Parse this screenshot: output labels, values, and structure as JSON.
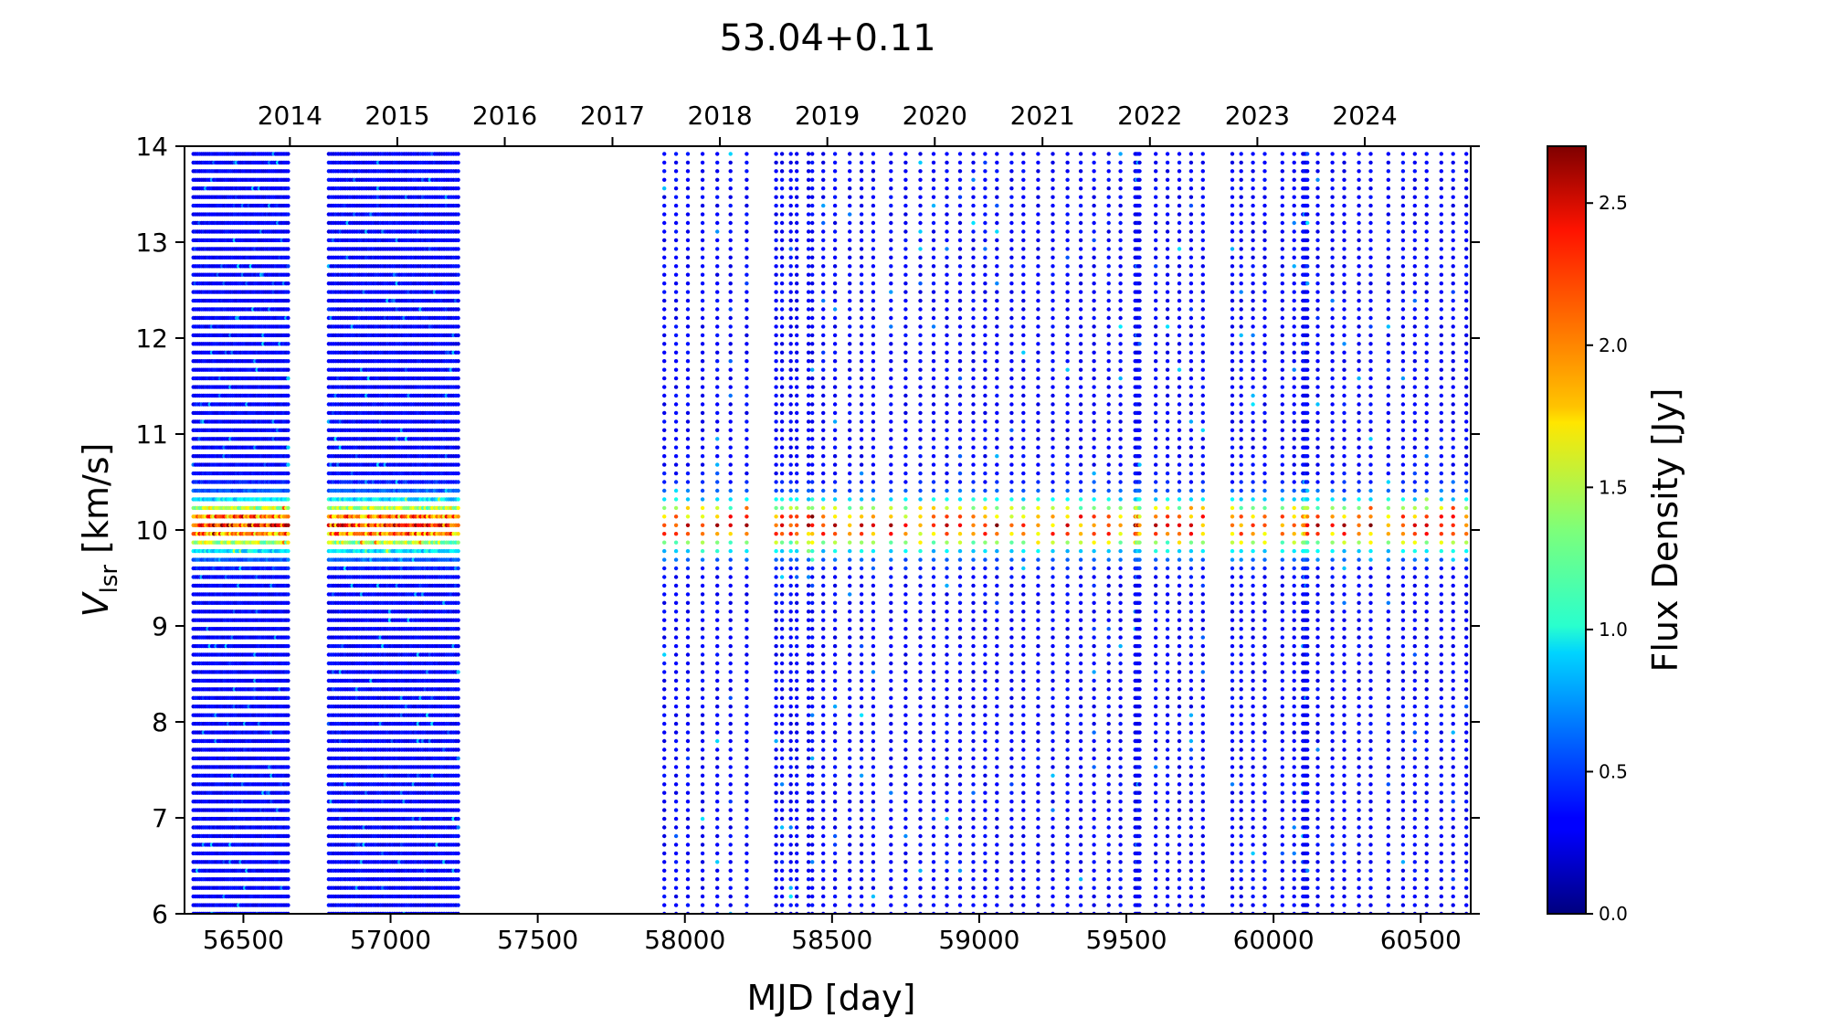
{
  "chart_data": {
    "type": "heatmap",
    "title": "53.04+0.11",
    "xlabel": "MJD [day]",
    "ylabel": "V",
    "ylabel_sub": "lsr",
    "ylabel_unit": " [km/s]",
    "xlim": [
      56300,
      60670
    ],
    "ylim": [
      6,
      14
    ],
    "x_ticks": [
      56500,
      57000,
      57500,
      58000,
      58500,
      59000,
      59500,
      60000,
      60500
    ],
    "y_ticks": [
      6,
      7,
      8,
      9,
      10,
      11,
      12,
      13,
      14
    ],
    "top_axis": {
      "labels": [
        "2014",
        "2015",
        "2016",
        "2017",
        "2018",
        "2019",
        "2020",
        "2021",
        "2022",
        "2023",
        "2024"
      ],
      "mjd_positions": [
        56658,
        57023,
        57388,
        57754,
        58119,
        58484,
        58849,
        59215,
        59580,
        59945,
        60310
      ]
    },
    "colorbar": {
      "label": "Flux Density [Jy]",
      "range": [
        0.0,
        2.7
      ],
      "ticks": [
        0.0,
        0.5,
        1.0,
        1.5,
        2.0,
        2.5
      ],
      "tick_labels": [
        "0.0",
        "0.5",
        "1.0",
        "1.5",
        "2.0",
        "2.5"
      ],
      "colormap": "jet"
    },
    "channel_spacing_kms": 0.09,
    "emission_peak": {
      "velocity": 10.05,
      "width": 0.18,
      "peak_flux": 1.9
    },
    "background_flux": 0.25,
    "dense_campaigns": [
      {
        "start": 56330,
        "end": 56655,
        "step": 7
      },
      {
        "start": 56790,
        "end": 57230,
        "step": 8
      }
    ],
    "sparse_observations": [
      57930,
      57970,
      58010,
      58060,
      58110,
      58155,
      58210,
      58310,
      58330,
      58360,
      58380,
      58420,
      58433,
      58470,
      58510,
      58560,
      58600,
      58640,
      58700,
      58750,
      58800,
      58845,
      58890,
      58935,
      58980,
      59020,
      59060,
      59110,
      59150,
      59200,
      59250,
      59300,
      59345,
      59390,
      59440,
      59480,
      59530,
      59535,
      59540,
      59545,
      59600,
      59640,
      59680,
      59720,
      59760,
      59860,
      59890,
      59930,
      59970,
      60030,
      60070,
      60100,
      60105,
      60110,
      60115,
      60150,
      60200,
      60240,
      60290,
      60330,
      60390,
      60440,
      60480,
      60520,
      60570,
      60610,
      60655
    ]
  }
}
